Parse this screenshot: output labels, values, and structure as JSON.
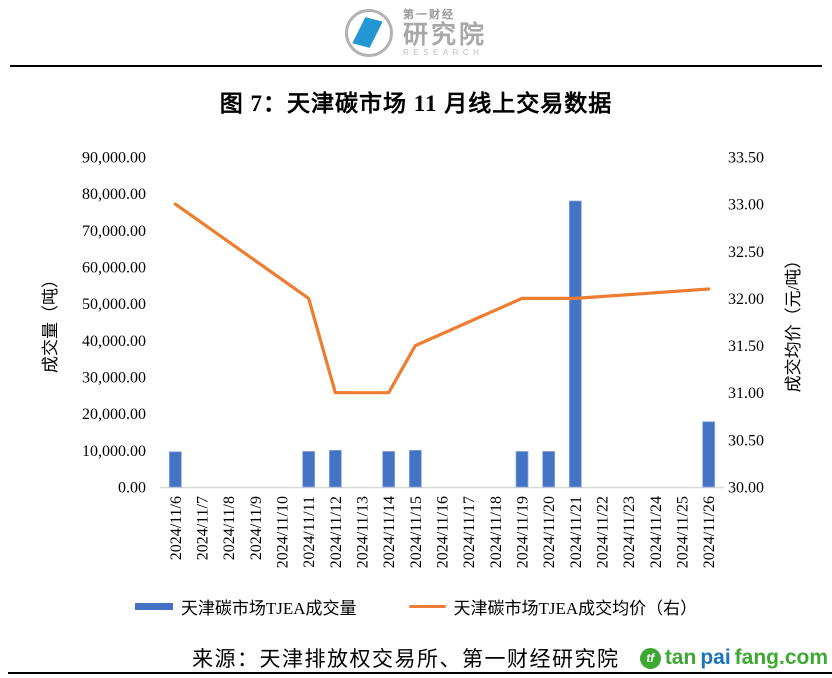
{
  "logo": {
    "line1": "第一财经",
    "line2": "研究院",
    "line3": "RESEARCH"
  },
  "title": "图 7：天津碳市场 11 月线上交易数据",
  "legend": {
    "volume": "天津碳市场TJEA成交量",
    "price": "天津碳市场TJEA成交均价（右）"
  },
  "footer": {
    "source": "来源：天津排放权交易所、第一财经研究院",
    "watermark": {
      "icon": "tf",
      "part1": "tan",
      "part2": "pai",
      "part3": "fang.com"
    }
  },
  "colors": {
    "bar": "#4472C4",
    "bar_border": "#8FAADC",
    "line": "#ED7D31",
    "axis_line": "#D9D9D9",
    "text": "#000000",
    "watermark_green": "#3DA832",
    "watermark_blue": "#1C75BC",
    "logo_blue": "#2396D3",
    "logo_gray": "#A8A8A8"
  },
  "chart_data": {
    "type": "bar",
    "combo": "bar+line dual-axis",
    "title": "图 7：天津碳市场 11 月线上交易数据",
    "categories": [
      "2024/11/6",
      "2024/11/7",
      "2024/11/8",
      "2024/11/9",
      "2024/11/10",
      "2024/11/11",
      "2024/11/12",
      "2024/11/13",
      "2024/11/14",
      "2024/11/15",
      "2024/11/16",
      "2024/11/17",
      "2024/11/18",
      "2024/11/19",
      "2024/11/20",
      "2024/11/21",
      "2024/11/22",
      "2024/11/23",
      "2024/11/24",
      "2024/11/25",
      "2024/11/26"
    ],
    "series": [
      {
        "name": "天津碳市场TJEA成交量",
        "type": "bar",
        "axis": "left",
        "color": "#4472C4",
        "values": [
          9600,
          null,
          null,
          null,
          null,
          9700,
          10000,
          null,
          9700,
          10000,
          null,
          null,
          null,
          9700,
          9700,
          78000,
          null,
          null,
          null,
          null,
          17800
        ]
      },
      {
        "name": "天津碳市场TJEA成交均价（右）",
        "type": "line",
        "axis": "right",
        "color": "#ED7D31",
        "values": [
          33.0,
          null,
          null,
          null,
          null,
          32.0,
          31.0,
          null,
          31.0,
          31.5,
          null,
          null,
          null,
          32.0,
          32.0,
          32.0,
          null,
          null,
          null,
          null,
          32.1
        ]
      }
    ],
    "left_axis": {
      "title": "成交量（吨）",
      "min": 0,
      "max": 90000,
      "step": 10000,
      "ticks": [
        "90,000.00",
        "80,000.00",
        "70,000.00",
        "60,000.00",
        "50,000.00",
        "40,000.00",
        "30,000.00",
        "20,000.00",
        "10,000.00",
        "0.00"
      ]
    },
    "right_axis": {
      "title": "成交均价（元/吨）",
      "min": 30.0,
      "max": 33.5,
      "step": 0.5,
      "ticks": [
        "33.50",
        "33.00",
        "32.50",
        "32.00",
        "31.50",
        "31.00",
        "30.50",
        "30.00"
      ]
    },
    "grid": false,
    "legend_position": "bottom"
  }
}
